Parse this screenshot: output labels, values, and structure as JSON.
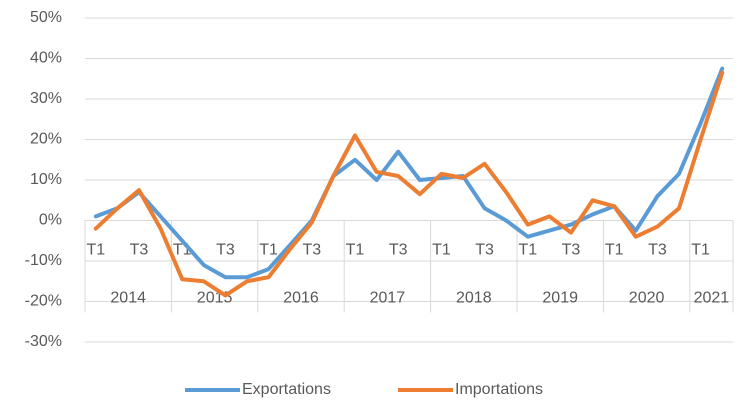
{
  "chart_data": {
    "type": "line",
    "categories": [
      "T1",
      null,
      "T3",
      null,
      "T1",
      null,
      "T3",
      null,
      "T1",
      null,
      "T3",
      null,
      "T1",
      null,
      "T3",
      null,
      "T1",
      null,
      "T3",
      null,
      "T1",
      null,
      "T3",
      null,
      "T1",
      null,
      "T3",
      null,
      "T1",
      null
    ],
    "category_groups": [
      "2014",
      "2015",
      "2016",
      "2017",
      "2018",
      "2019",
      "2020",
      "2021"
    ],
    "series": [
      {
        "name": "Exportations",
        "color": "#5b9bd5",
        "values": [
          1,
          3,
          7,
          1,
          -5,
          -11,
          -14,
          -14,
          -12,
          -6,
          0,
          11,
          15,
          10,
          17,
          10,
          10.5,
          11,
          3,
          0,
          -4,
          -2.5,
          -1,
          1.5,
          3.5,
          -2.5,
          6,
          11.5,
          24,
          37.5
        ]
      },
      {
        "name": "Importations",
        "color": "#ed7d31",
        "values": [
          -2,
          3,
          7.5,
          -2,
          -14.5,
          -15,
          -18.5,
          -15,
          -14,
          -7,
          -0.5,
          11,
          21,
          12,
          11,
          6.5,
          11.5,
          10.5,
          14,
          7,
          -1,
          1,
          -3,
          5,
          3.5,
          -4,
          -1.5,
          3,
          20,
          36.5
        ]
      }
    ],
    "ylim": [
      -30,
      50
    ],
    "yticks": [
      {
        "value": -30,
        "label": "-30%"
      },
      {
        "value": -20,
        "label": "-20%"
      },
      {
        "value": -10,
        "label": "-10%"
      },
      {
        "value": 0,
        "label": "0%"
      },
      {
        "value": 10,
        "label": "10%"
      },
      {
        "value": 20,
        "label": "20%"
      },
      {
        "value": 30,
        "label": "30%"
      },
      {
        "value": 40,
        "label": "40%"
      },
      {
        "value": 50,
        "label": "50%"
      }
    ],
    "grid": true,
    "legend": "bottom"
  }
}
